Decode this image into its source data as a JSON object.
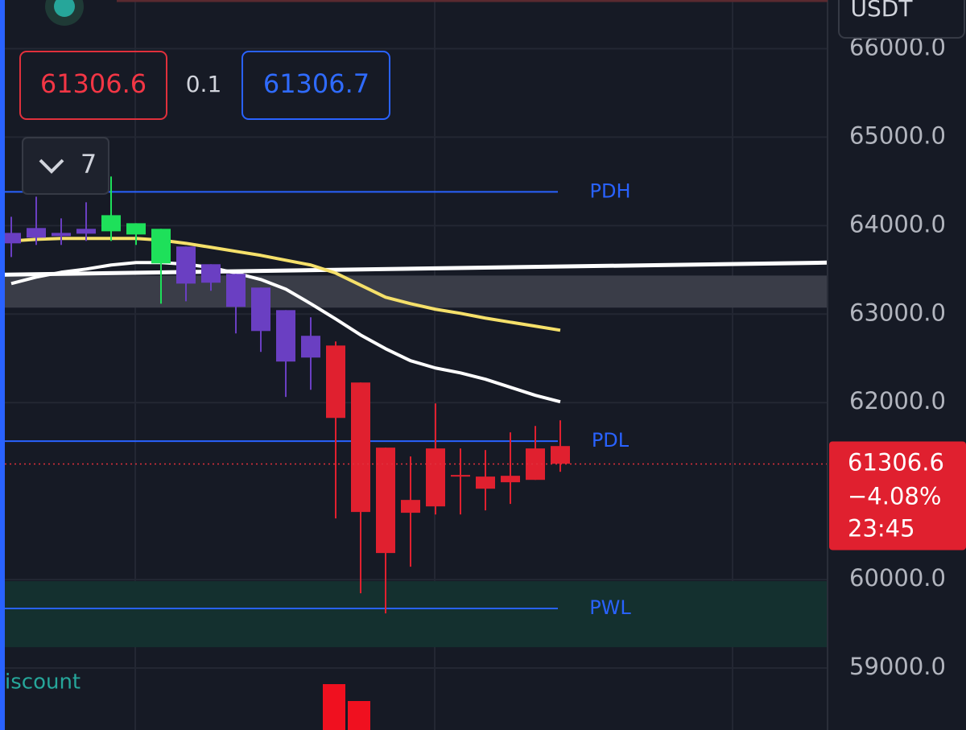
{
  "chart_data": {
    "type": "candlestick",
    "symbol": "USDT",
    "ylim": [
      58300,
      66550
    ],
    "yticks": [
      {
        "value": 59000,
        "label": "59000.0"
      },
      {
        "value": 60000,
        "label": "60000.0"
      },
      {
        "value": 62000,
        "label": "62000.0"
      },
      {
        "value": 63000,
        "label": "63000.0"
      },
      {
        "value": 64000,
        "label": "64000.0"
      },
      {
        "value": 65000,
        "label": "65000.0"
      },
      {
        "value": 66000,
        "label": "66000.0"
      }
    ],
    "grid": true,
    "open": [
      63800,
      63864,
      63882,
      63909,
      63936,
      63900,
      63573,
      63764,
      63564,
      63455,
      63300,
      63045,
      62755,
      62645,
      62227,
      61491,
      60900,
      61482,
      61182,
      61164,
      61173,
      61482,
      61509
    ],
    "high": [
      64100,
      64327,
      64082,
      64264,
      64555,
      64027,
      63964,
      63764,
      63564,
      63455,
      63300,
      63045,
      62964,
      62691,
      62227,
      61491,
      61391,
      61991,
      61482,
      61464,
      61664,
      61736,
      61800
    ],
    "low": [
      63645,
      63782,
      63782,
      63827,
      63827,
      63782,
      63118,
      63145,
      63264,
      62782,
      62573,
      62064,
      62145,
      60691,
      59845,
      59618,
      60145,
      60736,
      60736,
      60782,
      60855,
      61127,
      61218
    ],
    "close": [
      63918,
      63973,
      63918,
      63964,
      64118,
      64027,
      63964,
      63345,
      63355,
      63082,
      62809,
      62464,
      62509,
      61827,
      60764,
      60300,
      60755,
      60827,
      61164,
      61027,
      61100,
      61127,
      61309
    ],
    "colors": [
      "#6a3fc2",
      "#6a3fc2",
      "#6a3fc2",
      "#6a3fc2",
      "#1ee05a",
      "#1ee05a",
      "#1ee05a",
      "#6a3fc2",
      "#6a3fc2",
      "#6a3fc2",
      "#6a3fc2",
      "#6a3fc2",
      "#6a3fc2",
      "#e0202f",
      "#e0202f",
      "#e0202f",
      "#e0202f",
      "#e0202f",
      "#e0202f",
      "#e0202f",
      "#e0202f",
      "#e0202f",
      "#e0202f"
    ],
    "moving_averages": [
      {
        "color": "#f5e06a",
        "values": [
          63827,
          63845,
          63855,
          63855,
          63855,
          63855,
          63836,
          63800,
          63755,
          63709,
          63664,
          63609,
          63555,
          63464,
          63327,
          63191,
          63118,
          63055,
          63009,
          62955,
          62909,
          62864,
          62818
        ]
      },
      {
        "color": "#ffffff",
        "values": [
          63345,
          63418,
          63473,
          63509,
          63555,
          63582,
          63582,
          63564,
          63527,
          63464,
          63391,
          63282,
          63118,
          62945,
          62764,
          62609,
          62473,
          62391,
          62336,
          62264,
          62173,
          62082,
          62009
        ]
      }
    ],
    "trendline": {
      "color": "#ffffff",
      "start": 63445,
      "end": 63582
    },
    "zones": [
      {
        "from": 63436,
        "to": 63073,
        "color": "#3a3d48"
      },
      {
        "from": 59982,
        "to": 59236,
        "color": "#14302f"
      }
    ],
    "zone_label": "iscount",
    "levels": [
      {
        "label": "PDH",
        "value": 64382,
        "color": "#2962ff"
      },
      {
        "label": "PDL",
        "value": 61564,
        "color": "#2962ff"
      },
      {
        "label": "PWL",
        "value": 59673,
        "color": "#2962ff"
      }
    ],
    "last_price": {
      "price": 61306.6,
      "change": {
        "value": -4.08,
        "label": "−4.08%"
      },
      "countdown": "23:45"
    },
    "order_panel": {
      "sell": 61306.6,
      "spread": 0.1,
      "buy": 61306.7
    },
    "interval": "7"
  }
}
